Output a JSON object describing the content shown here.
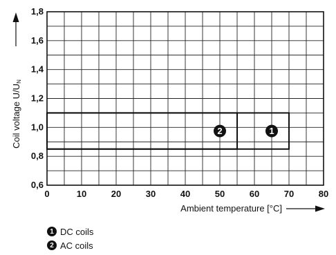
{
  "chart_data": {
    "type": "area",
    "xlabel": "Ambient temperature [°C]",
    "ylabel_main": "Coil voltage U/U",
    "ylabel_sub": "N",
    "xlim": [
      0,
      80
    ],
    "ylim": [
      0.6,
      1.8
    ],
    "x_ticks": [
      {
        "value": 0,
        "label": "0"
      },
      {
        "value": 10,
        "label": "10"
      },
      {
        "value": 20,
        "label": "20"
      },
      {
        "value": 30,
        "label": "30"
      },
      {
        "value": 40,
        "label": "40"
      },
      {
        "value": 50,
        "label": "50"
      },
      {
        "value": 60,
        "label": "60"
      },
      {
        "value": 70,
        "label": "70"
      },
      {
        "value": 80,
        "label": "80"
      }
    ],
    "y_ticks": [
      {
        "value": 0.6,
        "label": "0,6"
      },
      {
        "value": 0.8,
        "label": "0,8"
      },
      {
        "value": 1.0,
        "label": "1,0"
      },
      {
        "value": 1.2,
        "label": "1,2"
      },
      {
        "value": 1.4,
        "label": "1,4"
      },
      {
        "value": 1.6,
        "label": "1,6"
      },
      {
        "value": 1.8,
        "label": "1,8"
      }
    ],
    "grid_x_step": 5,
    "grid_y_step": 0.1,
    "series": [
      {
        "marker": "1",
        "name": "DC coils",
        "x_range": [
          0,
          70
        ],
        "y_range": [
          0.85,
          1.1
        ]
      },
      {
        "marker": "2",
        "name": "AC coils",
        "x_range": [
          0,
          55
        ],
        "y_range": [
          0.85,
          1.1
        ]
      }
    ]
  },
  "legend": [
    {
      "marker": "1",
      "label": "DC coils"
    },
    {
      "marker": "2",
      "label": "AC coils"
    }
  ]
}
